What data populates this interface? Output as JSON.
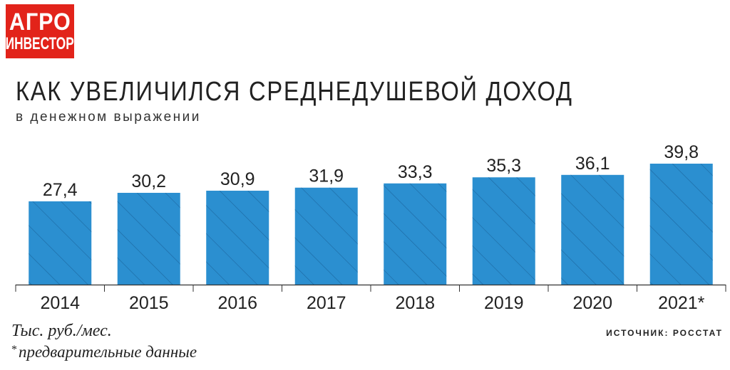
{
  "logo": {
    "line1": "АГРО",
    "line2": "ИНВЕСТОР"
  },
  "colors": {
    "logo": "#e2231a",
    "bar": "#2b8fd0",
    "hatch": "#1d6aa3",
    "text": "#222222"
  },
  "chart_data": {
    "type": "bar",
    "title": "КАК УВЕЛИЧИЛСЯ СРЕДНЕДУШЕВОЙ ДОХОД",
    "subtitle": "в денежном выражении",
    "categories": [
      "2014",
      "2015",
      "2016",
      "2017",
      "2018",
      "2019",
      "2020",
      "2021*"
    ],
    "values": [
      27.4,
      30.2,
      30.9,
      31.9,
      33.3,
      35.3,
      36.1,
      39.8
    ],
    "value_labels": [
      "27,4",
      "30,2",
      "30,9",
      "31,9",
      "33,3",
      "35,3",
      "36,1",
      "39,8"
    ],
    "ylim": [
      0,
      39.8
    ],
    "xlabel": "",
    "ylabel": "",
    "grid": false,
    "pattern": "diagonal-hatch"
  },
  "footer": {
    "unit": "Тыс. руб./мес.",
    "note_star": "*",
    "note": "предварительные данные",
    "source": "ИСТОЧНИК: РОССТАТ"
  }
}
